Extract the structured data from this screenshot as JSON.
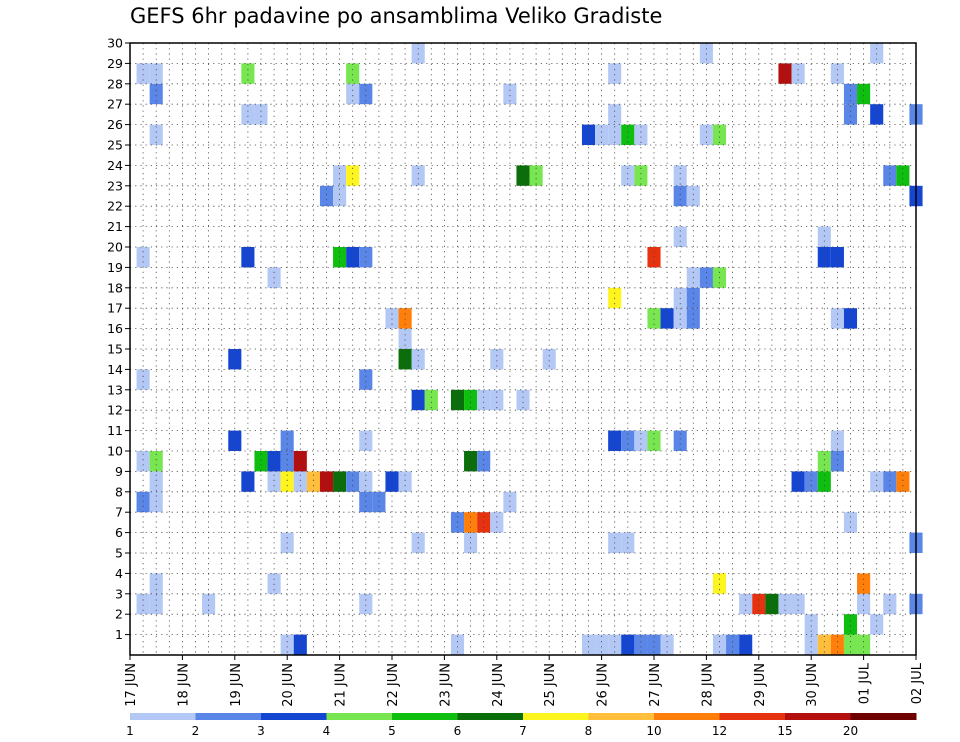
{
  "chart_data": {
    "type": "heatmap",
    "title": "GEFS 6hr padavine po ansamblima Veliko Gradiste",
    "xlabel": "",
    "ylabel": "",
    "x_ticks": [
      "17 JUN",
      "18 JUN",
      "19 JUN",
      "20 JUN",
      "21 JUN",
      "22 JUN",
      "23 JUN",
      "24 JUN",
      "25 JUN",
      "26 JUN",
      "27 JUN",
      "28 JUN",
      "29 JUN",
      "30 JUN",
      "01 JUL",
      "02 JUL"
    ],
    "y_ticks": [
      "1",
      "2",
      "3",
      "4",
      "5",
      "6",
      "7",
      "8",
      "9",
      "10",
      "11",
      "12",
      "13",
      "14",
      "15",
      "16",
      "17",
      "18",
      "19",
      "20",
      "21",
      "22",
      "23",
      "24",
      "25",
      "26",
      "27",
      "28",
      "29",
      "30"
    ],
    "xlim": [
      0,
      60
    ],
    "ylim": [
      0,
      30
    ],
    "grid": true,
    "colorbar": {
      "labels": [
        "1",
        "2",
        "3",
        "4",
        "5",
        "6",
        "7",
        "8",
        "10",
        "12",
        "15",
        "20"
      ],
      "colors": [
        "#b4c8f5",
        "#5a86e8",
        "#1446d2",
        "#78e650",
        "#0fbf0f",
        "#0a6e0a",
        "#fff51e",
        "#ffbe3c",
        "#ff7f0a",
        "#e6320f",
        "#b40f0f",
        "#6e0000"
      ]
    },
    "cells": [
      [
        12,
        0,
        1
      ],
      [
        13,
        0,
        3
      ],
      [
        25,
        0,
        1
      ],
      [
        35,
        0,
        1
      ],
      [
        36,
        0,
        1
      ],
      [
        37,
        0,
        1
      ],
      [
        38,
        0,
        3
      ],
      [
        39,
        0,
        2
      ],
      [
        40,
        0,
        2
      ],
      [
        41,
        0,
        1
      ],
      [
        45,
        0,
        1
      ],
      [
        46,
        0,
        2
      ],
      [
        47,
        0,
        3
      ],
      [
        52,
        0,
        1
      ],
      [
        53,
        0,
        8
      ],
      [
        54,
        0,
        9
      ],
      [
        55,
        0,
        4
      ],
      [
        56,
        0,
        4
      ],
      [
        52,
        1,
        1
      ],
      [
        55,
        1,
        5
      ],
      [
        57,
        1,
        1
      ],
      [
        51,
        2,
        1
      ],
      [
        56,
        2,
        1
      ],
      [
        58,
        2,
        1
      ],
      [
        1,
        2,
        1
      ],
      [
        2,
        2,
        1
      ],
      [
        6,
        2,
        1
      ],
      [
        18,
        2,
        1
      ],
      [
        47,
        2,
        1
      ],
      [
        48,
        2,
        10
      ],
      [
        49,
        2,
        6
      ],
      [
        50,
        2,
        1
      ],
      [
        60,
        2,
        2
      ],
      [
        2,
        3,
        1
      ],
      [
        45,
        3,
        7
      ],
      [
        56,
        3,
        9
      ],
      [
        11,
        3,
        1
      ],
      [
        12,
        5,
        1
      ],
      [
        22,
        5,
        1
      ],
      [
        26,
        5,
        1
      ],
      [
        37,
        5,
        1
      ],
      [
        38,
        5,
        1
      ],
      [
        60,
        5,
        2
      ],
      [
        25,
        6,
        2
      ],
      [
        26,
        6,
        9
      ],
      [
        27,
        6,
        10
      ],
      [
        28,
        6,
        1
      ],
      [
        55,
        6,
        1
      ],
      [
        1,
        7,
        2
      ],
      [
        2,
        7,
        1
      ],
      [
        18,
        7,
        2
      ],
      [
        19,
        7,
        2
      ],
      [
        29,
        7,
        1
      ],
      [
        2,
        8,
        1
      ],
      [
        9,
        8,
        3
      ],
      [
        11,
        8,
        1
      ],
      [
        12,
        8,
        7
      ],
      [
        13,
        8,
        1
      ],
      [
        14,
        8,
        8
      ],
      [
        15,
        8,
        11
      ],
      [
        16,
        8,
        6
      ],
      [
        17,
        8,
        2
      ],
      [
        18,
        8,
        1
      ],
      [
        20,
        8,
        3
      ],
      [
        21,
        8,
        1
      ],
      [
        51,
        8,
        3
      ],
      [
        52,
        8,
        2
      ],
      [
        53,
        8,
        5
      ],
      [
        57,
        8,
        1
      ],
      [
        58,
        8,
        2
      ],
      [
        59,
        8,
        9
      ],
      [
        1,
        9,
        1
      ],
      [
        2,
        9,
        4
      ],
      [
        10,
        9,
        5
      ],
      [
        11,
        9,
        3
      ],
      [
        12,
        9,
        2
      ],
      [
        13,
        9,
        11
      ],
      [
        26,
        9,
        6
      ],
      [
        27,
        9,
        2
      ],
      [
        53,
        9,
        4
      ],
      [
        54,
        9,
        2
      ],
      [
        8,
        10,
        3
      ],
      [
        12,
        10,
        2
      ],
      [
        18,
        10,
        1
      ],
      [
        37,
        10,
        3
      ],
      [
        38,
        10,
        2
      ],
      [
        39,
        10,
        1
      ],
      [
        40,
        10,
        4
      ],
      [
        42,
        10,
        2
      ],
      [
        54,
        10,
        1
      ],
      [
        22,
        12,
        3
      ],
      [
        23,
        12,
        4
      ],
      [
        25,
        12,
        6
      ],
      [
        26,
        12,
        5
      ],
      [
        27,
        12,
        1
      ],
      [
        28,
        12,
        1
      ],
      [
        30,
        12,
        1
      ],
      [
        1,
        13,
        1
      ],
      [
        18,
        13,
        2
      ],
      [
        8,
        14,
        3
      ],
      [
        21,
        14,
        6
      ],
      [
        22,
        14,
        1
      ],
      [
        28,
        14,
        1
      ],
      [
        32,
        14,
        1
      ],
      [
        21,
        15,
        1
      ],
      [
        20,
        16,
        1
      ],
      [
        21,
        16,
        9
      ],
      [
        40,
        16,
        4
      ],
      [
        41,
        16,
        3
      ],
      [
        42,
        16,
        1
      ],
      [
        43,
        16,
        2
      ],
      [
        54,
        16,
        1
      ],
      [
        55,
        16,
        3
      ],
      [
        37,
        17,
        7
      ],
      [
        42,
        17,
        1
      ],
      [
        43,
        17,
        2
      ],
      [
        11,
        18,
        1
      ],
      [
        43,
        18,
        1
      ],
      [
        44,
        18,
        2
      ],
      [
        45,
        18,
        4
      ],
      [
        1,
        19,
        1
      ],
      [
        9,
        19,
        3
      ],
      [
        16,
        19,
        5
      ],
      [
        17,
        19,
        3
      ],
      [
        18,
        19,
        2
      ],
      [
        40,
        19,
        10
      ],
      [
        53,
        19,
        3
      ],
      [
        54,
        19,
        3
      ],
      [
        42,
        20,
        1
      ],
      [
        53,
        20,
        1
      ],
      [
        15,
        22,
        2
      ],
      [
        16,
        22,
        1
      ],
      [
        42,
        22,
        2
      ],
      [
        43,
        22,
        1
      ],
      [
        60,
        22,
        3
      ],
      [
        16,
        23,
        1
      ],
      [
        17,
        23,
        7
      ],
      [
        22,
        23,
        1
      ],
      [
        30,
        23,
        6
      ],
      [
        31,
        23,
        4
      ],
      [
        38,
        23,
        1
      ],
      [
        39,
        23,
        4
      ],
      [
        42,
        23,
        1
      ],
      [
        58,
        23,
        2
      ],
      [
        59,
        23,
        5
      ],
      [
        2,
        25,
        1
      ],
      [
        35,
        25,
        3
      ],
      [
        36,
        25,
        1
      ],
      [
        37,
        25,
        1
      ],
      [
        38,
        25,
        5
      ],
      [
        39,
        25,
        1
      ],
      [
        44,
        25,
        1
      ],
      [
        45,
        25,
        4
      ],
      [
        9,
        26,
        1
      ],
      [
        10,
        26,
        1
      ],
      [
        37,
        26,
        1
      ],
      [
        55,
        26,
        2
      ],
      [
        57,
        26,
        3
      ],
      [
        60,
        26,
        2
      ],
      [
        2,
        27,
        2
      ],
      [
        17,
        27,
        1
      ],
      [
        18,
        27,
        2
      ],
      [
        29,
        27,
        1
      ],
      [
        55,
        27,
        2
      ],
      [
        56,
        27,
        5
      ],
      [
        1,
        28,
        1
      ],
      [
        2,
        28,
        1
      ],
      [
        9,
        28,
        4
      ],
      [
        17,
        28,
        4
      ],
      [
        37,
        28,
        1
      ],
      [
        50,
        28,
        11
      ],
      [
        51,
        28,
        1
      ],
      [
        54,
        28,
        1
      ],
      [
        22,
        29,
        1
      ],
      [
        44,
        29,
        1
      ],
      [
        57,
        29,
        1
      ]
    ]
  }
}
